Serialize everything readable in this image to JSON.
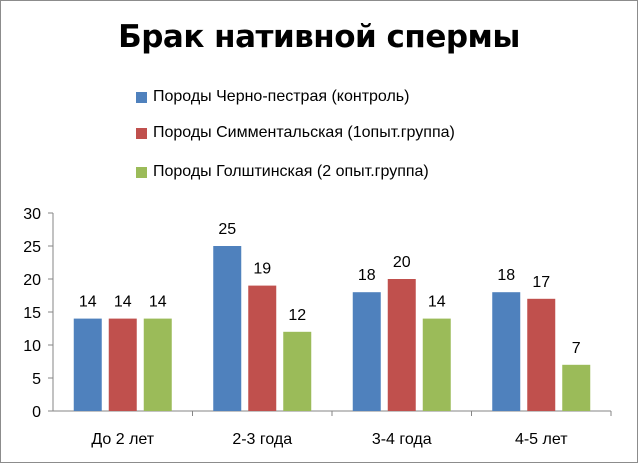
{
  "chart_data": {
    "type": "bar",
    "title": "Брак нативной спермы",
    "categories": [
      "До 2 лет",
      "2-3 года",
      "3-4 года",
      "4-5 лет"
    ],
    "series": [
      {
        "name": "Породы Черно-пестрая (контроль)",
        "values": [
          14,
          25,
          18,
          18
        ],
        "color": "#4f81bd"
      },
      {
        "name": "Породы Симментальская (1опыт.группа)",
        "values": [
          14,
          19,
          20,
          17
        ],
        "color": "#c0504d"
      },
      {
        "name": "Породы Голштинская (2 опыт.группа)",
        "values": [
          14,
          12,
          14,
          7
        ],
        "color": "#9bbb59"
      }
    ],
    "ylim": [
      0,
      30
    ],
    "yticks": [
      0,
      5,
      10,
      15,
      20,
      25,
      30
    ],
    "grid": false,
    "data_labels": true,
    "legend_position": "top"
  }
}
